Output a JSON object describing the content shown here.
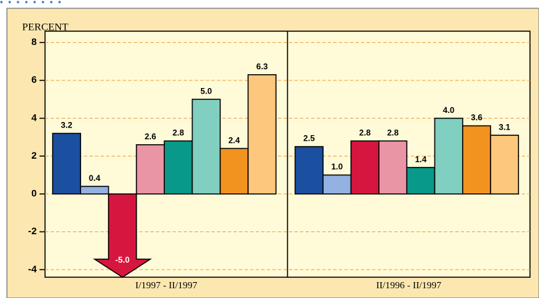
{
  "chart_data": {
    "type": "bar",
    "y_label": "PERCENT",
    "categories": [
      "I/1997 - II/1997",
      "II/1996 - II/1997"
    ],
    "series": [
      {
        "color": "#1b4f9f",
        "values": [
          3.2,
          2.5
        ],
        "value_labels": [
          "3.2",
          "2.5"
        ]
      },
      {
        "color": "#93b2e2",
        "values": [
          0.4,
          1.0
        ],
        "value_labels": [
          "0.4",
          "1.0"
        ]
      },
      {
        "color": "#d7163f",
        "values": [
          -5.0,
          2.8
        ],
        "value_labels": [
          "-5.0",
          "2.8"
        ]
      },
      {
        "color": "#e995a6",
        "values": [
          2.6,
          2.8
        ],
        "value_labels": [
          "2.6",
          "2.8"
        ]
      },
      {
        "color": "#08998a",
        "values": [
          2.8,
          1.4
        ],
        "value_labels": [
          "2.8",
          "1.4"
        ]
      },
      {
        "color": "#80cfc1",
        "values": [
          5.0,
          4.0
        ],
        "value_labels": [
          "5.0",
          "4.0"
        ]
      },
      {
        "color": "#f2931f",
        "values": [
          2.4,
          3.6
        ],
        "value_labels": [
          "2.4",
          "3.6"
        ]
      },
      {
        "color": "#fdc77d",
        "values": [
          6.3,
          3.1
        ],
        "value_labels": [
          "6.3",
          "3.1"
        ]
      }
    ],
    "ylim": [
      -4.4,
      8.6
    ],
    "yticks": [
      -4,
      -2,
      0,
      2,
      4,
      6,
      8
    ],
    "grid": true
  }
}
